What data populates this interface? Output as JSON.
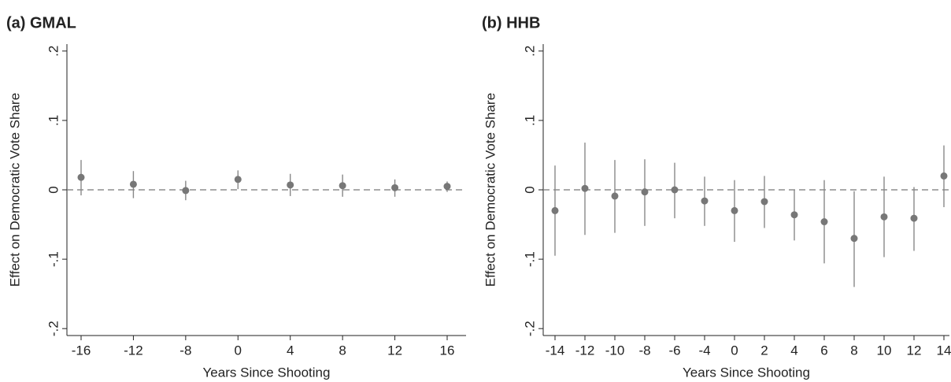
{
  "chart_data": [
    {
      "type": "coefplot",
      "title": "(a) GMAL",
      "xlabel": "Years Since Shooting",
      "ylabel": "Effect on Democratic Vote Share",
      "categories": [
        "-16",
        "-12",
        "-8",
        "0",
        "4",
        "8",
        "12",
        "16"
      ],
      "series": [
        {
          "color": "#777777",
          "values": [
            0.018,
            0.008,
            -0.001,
            0.015,
            0.007,
            0.006,
            0.003,
            0.005
          ],
          "lower": [
            -0.008,
            -0.012,
            -0.015,
            0.001,
            -0.009,
            -0.01,
            -0.01,
            -0.003
          ],
          "upper": [
            0.043,
            0.027,
            0.013,
            0.028,
            0.023,
            0.022,
            0.015,
            0.012
          ]
        }
      ],
      "ylim": [
        -0.21,
        0.21
      ],
      "yticks": [
        {
          "value": -0.2,
          "label": "-.2"
        },
        {
          "value": -0.1,
          "label": "-.1"
        },
        0,
        {
          "value": 0.1,
          "label": ".1"
        },
        {
          "value": 0.2,
          "label": ".2"
        }
      ]
    },
    {
      "type": "coefplot",
      "title": "(b) HHB",
      "xlabel": "Years Since Shooting",
      "ylabel": "Effect on Democratic Vote Share",
      "categories": [
        "-14",
        "-12",
        "-10",
        "-8",
        "-6",
        "-4",
        "0",
        "2",
        "4",
        "6",
        "8",
        "10",
        "12",
        "14"
      ],
      "series": [
        {
          "color": "#777777",
          "values": [
            -0.03,
            0.002,
            -0.009,
            -0.003,
            0.0,
            -0.016,
            -0.03,
            -0.017,
            -0.036,
            -0.046,
            -0.07,
            -0.039,
            -0.041,
            0.02
          ],
          "lower": [
            -0.095,
            -0.065,
            -0.062,
            -0.052,
            -0.041,
            -0.052,
            -0.075,
            -0.055,
            -0.073,
            -0.106,
            -0.14,
            -0.097,
            -0.088,
            -0.025
          ],
          "upper": [
            0.035,
            0.068,
            0.043,
            0.044,
            0.039,
            0.019,
            0.014,
            0.02,
            0.0,
            0.014,
            -0.002,
            0.019,
            0.004,
            0.064
          ]
        }
      ],
      "ylim": [
        -0.21,
        0.21
      ],
      "yticks": [
        {
          "value": -0.2,
          "label": "-.2"
        },
        {
          "value": -0.1,
          "label": "-.1"
        },
        0,
        {
          "value": 0.1,
          "label": ".1"
        },
        {
          "value": 0.2,
          "label": ".2"
        }
      ]
    }
  ]
}
